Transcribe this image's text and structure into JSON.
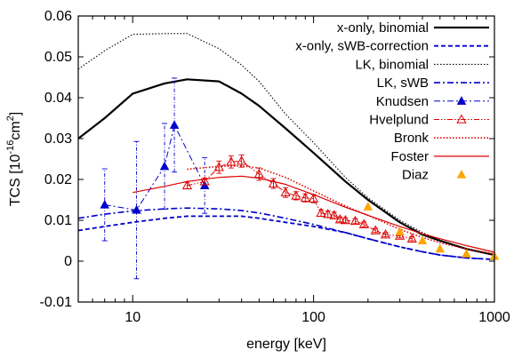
{
  "chart_data": {
    "type": "line",
    "title": "",
    "xlabel": "energy [keV]",
    "ylabel_parts": {
      "base": "TCS [10",
      "exp1": "-16",
      "mid": "cm",
      "exp2": "2",
      "end": "]"
    },
    "x_scale": "log",
    "xlim": [
      5,
      1000
    ],
    "ylim": [
      -0.01,
      0.06
    ],
    "x_ticks": [
      10,
      100,
      1000
    ],
    "x_tick_labels": [
      "10",
      "100",
      "1000"
    ],
    "y_ticks": [
      -0.01,
      0,
      0.01,
      0.02,
      0.03,
      0.04,
      0.05,
      0.06
    ],
    "y_tick_labels": [
      "-0.01",
      "0",
      "0.01",
      "0.02",
      "0.03",
      "0.04",
      "0.05",
      "0.06"
    ],
    "grid": false,
    "legend_position": "top-right",
    "series": [
      {
        "name": "x-only, binomial",
        "style": "solid",
        "width": 2.2,
        "color": "#000000",
        "marker": "none",
        "x": [
          5,
          7,
          10,
          15,
          20,
          30,
          40,
          50,
          70,
          100,
          150,
          200,
          300,
          400,
          500,
          700,
          1000
        ],
        "y": [
          0.03,
          0.035,
          0.041,
          0.0435,
          0.0445,
          0.044,
          0.041,
          0.038,
          0.0325,
          0.0265,
          0.0195,
          0.015,
          0.0095,
          0.0065,
          0.005,
          0.003,
          0.0015
        ]
      },
      {
        "name": "x-only, sWB-correction",
        "style": "dashed",
        "width": 1.8,
        "color": "#0000cc",
        "marker": "none",
        "x": [
          5,
          7,
          10,
          15,
          20,
          30,
          40,
          50,
          70,
          100,
          150,
          200,
          300,
          400,
          500,
          700,
          1000
        ],
        "y": [
          0.0075,
          0.0085,
          0.0095,
          0.0105,
          0.011,
          0.011,
          0.011,
          0.0105,
          0.0095,
          0.0085,
          0.007,
          0.0055,
          0.0035,
          0.0023,
          0.0015,
          0.0008,
          0.0004
        ]
      },
      {
        "name": "LK, binomial",
        "style": "dotted",
        "width": 1.1,
        "color": "#000000",
        "marker": "none",
        "x": [
          5,
          7,
          10,
          15,
          20,
          30,
          40,
          50,
          70,
          100,
          150,
          200,
          300,
          400,
          500,
          700,
          1000
        ],
        "y": [
          0.047,
          0.0515,
          0.0555,
          0.0557,
          0.0557,
          0.052,
          0.048,
          0.044,
          0.036,
          0.029,
          0.0205,
          0.0155,
          0.01,
          0.007,
          0.0052,
          0.003,
          0.0015
        ]
      },
      {
        "name": "LK, sWB",
        "style": "dashdot",
        "width": 1.6,
        "color": "#0000cc",
        "marker": "none",
        "x": [
          5,
          7,
          10,
          15,
          20,
          30,
          40,
          50,
          70,
          100,
          150,
          200,
          300,
          400,
          500,
          700,
          1000
        ],
        "y": [
          0.0105,
          0.0115,
          0.0123,
          0.0128,
          0.013,
          0.0128,
          0.0124,
          0.0118,
          0.0105,
          0.009,
          0.007,
          0.0055,
          0.0035,
          0.0023,
          0.0015,
          0.0008,
          0.0004
        ]
      },
      {
        "name": "Knudsen",
        "style": "dashdot",
        "width": 1.0,
        "color": "#0000cc",
        "marker": "triangle-filled",
        "x": [
          7,
          10.5,
          15,
          17,
          25
        ],
        "y": [
          0.0138,
          0.0125,
          0.0232,
          0.0333,
          0.0185
        ],
        "yerr": [
          0.0088,
          0.0168,
          0.0105,
          0.0115,
          0.0068
        ]
      },
      {
        "name": "Hvelplund",
        "style": "dashdotdot",
        "width": 1.0,
        "color": "#dd0000",
        "marker": "triangle-open",
        "x": [
          20,
          25,
          30,
          35,
          40,
          50,
          60,
          70,
          80,
          90,
          100,
          110,
          120,
          130,
          140,
          150,
          170,
          190,
          220,
          250,
          300,
          350
        ],
        "y": [
          0.0185,
          0.0195,
          0.023,
          0.0243,
          0.0245,
          0.0213,
          0.019,
          0.0168,
          0.016,
          0.0155,
          0.0153,
          0.0118,
          0.0115,
          0.0112,
          0.0102,
          0.01,
          0.0098,
          0.009,
          0.0075,
          0.0065,
          0.0062,
          0.0055
        ],
        "yerr": [
          0.0008,
          0.0008,
          0.0015,
          0.0015,
          0.0015,
          0.0015,
          0.0012,
          0.0012,
          0.001,
          0.001,
          0.001,
          0.0008,
          0.0008,
          0.0008,
          0.0006,
          0.0006,
          0.0006,
          0.0006,
          0.0005,
          0.0005,
          0.0005,
          0.0005
        ]
      },
      {
        "name": "Bronk",
        "style": "dotted",
        "width": 1.6,
        "color": "#dd0000",
        "marker": "none",
        "x": [
          20,
          30,
          40,
          50,
          70,
          100,
          150,
          200,
          300,
          400,
          500,
          700,
          1000
        ],
        "y": [
          0.0225,
          0.0232,
          0.0233,
          0.0228,
          0.0205,
          0.0172,
          0.0135,
          0.0112,
          0.0078,
          0.0058,
          0.0045,
          0.003,
          0.0018
        ]
      },
      {
        "name": "Foster",
        "style": "solid",
        "width": 1.2,
        "color": "#dd0000",
        "marker": "none",
        "x": [
          10,
          15,
          20,
          30,
          40,
          50,
          70,
          100,
          150,
          200,
          300,
          400,
          500,
          700,
          1000
        ],
        "y": [
          0.0168,
          0.0183,
          0.0195,
          0.0205,
          0.0208,
          0.0203,
          0.0188,
          0.0163,
          0.0132,
          0.0112,
          0.0085,
          0.0067,
          0.0055,
          0.0038,
          0.0022
        ]
      },
      {
        "name": "Diaz",
        "style": "none",
        "width": 0,
        "color": "#ffa500",
        "marker": "triangle-filled",
        "x": [
          200,
          300,
          400,
          500,
          700,
          1000
        ],
        "y": [
          0.0133,
          0.0072,
          0.005,
          0.003,
          0.0018,
          0.0012
        ]
      }
    ]
  }
}
